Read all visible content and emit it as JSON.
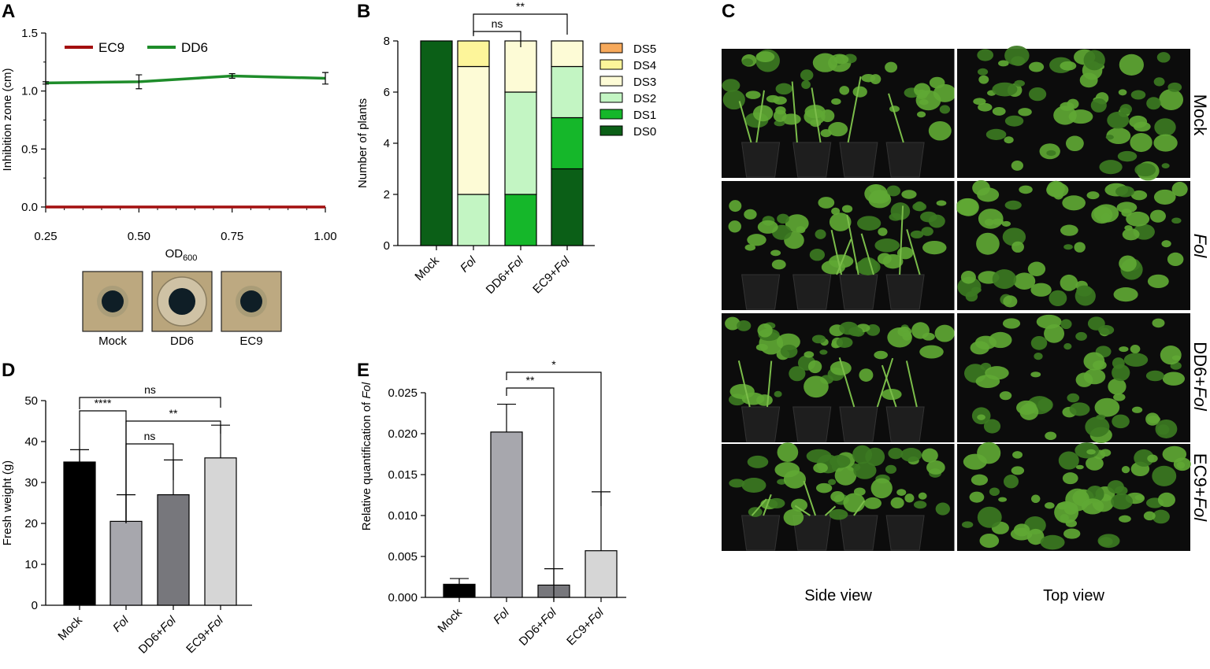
{
  "chart_data": [
    {
      "panel": "A",
      "type": "line",
      "xlabel": "OD",
      "xlabel_sub": "600",
      "ylabel": "Inhibition zone (cm)",
      "xlim": [
        0.25,
        1.0
      ],
      "ylim": [
        0.0,
        1.5
      ],
      "x_ticks": [
        "0.25",
        "0.50",
        "0.75",
        "1.00"
      ],
      "y_ticks": [
        "0.0",
        "0.5",
        "1.0",
        "1.5"
      ],
      "legend_position": "top-left",
      "series": [
        {
          "name": "EC9",
          "color": "#a30f0f",
          "x": [
            0.25,
            0.5,
            0.75,
            1.0
          ],
          "y": [
            0.0,
            0.0,
            0.0,
            0.0
          ],
          "err": [
            0,
            0,
            0,
            0
          ]
        },
        {
          "name": "DD6",
          "color": "#1e8c2a",
          "x": [
            0.25,
            0.5,
            0.75,
            1.0
          ],
          "y": [
            1.07,
            1.08,
            1.13,
            1.11
          ],
          "err": [
            0.01,
            0.06,
            0.02,
            0.05
          ]
        }
      ],
      "plate_labels": [
        "Mock",
        "DD6",
        "EC9"
      ]
    },
    {
      "panel": "B",
      "type": "bar",
      "stacked": true,
      "ylabel": "Number of plants",
      "ylim": [
        0,
        8
      ],
      "y_ticks": [
        "0",
        "2",
        "4",
        "6",
        "8"
      ],
      "categories": [
        "Mock",
        "Fol",
        "DD6+Fol",
        "EC9+Fol"
      ],
      "series": [
        {
          "name": "DS0",
          "color": "#0b5f17",
          "values": [
            8,
            0,
            0,
            3
          ]
        },
        {
          "name": "DS1",
          "color": "#15b72a",
          "values": [
            0,
            0,
            2,
            2
          ]
        },
        {
          "name": "DS2",
          "color": "#c3f5c3",
          "values": [
            0,
            2,
            4,
            2
          ]
        },
        {
          "name": "DS3",
          "color": "#fdfbd6",
          "values": [
            0,
            5,
            2,
            1
          ]
        },
        {
          "name": "DS4",
          "color": "#fdf59a",
          "values": [
            0,
            1,
            0,
            0
          ]
        },
        {
          "name": "DS5",
          "color": "#f7a95b",
          "values": [
            0,
            0,
            0,
            0
          ]
        }
      ],
      "significance": [
        {
          "from": 1,
          "to": 2,
          "label": "ns"
        },
        {
          "from": 1,
          "to": 3,
          "label": "**"
        }
      ]
    },
    {
      "panel": "D",
      "type": "bar",
      "ylabel": "Fresh weight (g)",
      "ylim": [
        0,
        50
      ],
      "y_ticks": [
        "0",
        "10",
        "20",
        "30",
        "40",
        "50"
      ],
      "categories": [
        "Mock",
        "Fol",
        "DD6+Fol",
        "EC9+Fol"
      ],
      "values": [
        35,
        20.5,
        27,
        36
      ],
      "errors": [
        3,
        6.5,
        8.5,
        8
      ],
      "colors": [
        "#000000",
        "#a7a7ad",
        "#77777c",
        "#d6d6d6"
      ],
      "significance": [
        {
          "from": 0,
          "to": 1,
          "label": "****"
        },
        {
          "from": 1,
          "to": 2,
          "label": "ns"
        },
        {
          "from": 1,
          "to": 3,
          "label": "**"
        },
        {
          "from": 0,
          "to": 3,
          "label": "ns"
        }
      ]
    },
    {
      "panel": "E",
      "type": "bar",
      "ylabel_prefix": "Relative quantification of ",
      "ylabel_italic": "Fol",
      "ylim": [
        0,
        0.025
      ],
      "y_ticks": [
        "0.000",
        "0.005",
        "0.010",
        "0.015",
        "0.020",
        "0.025"
      ],
      "categories": [
        "Mock",
        "Fol",
        "DD6+Fol",
        "EC9+Fol"
      ],
      "values": [
        0.0016,
        0.0202,
        0.0015,
        0.0057
      ],
      "errors": [
        0.0007,
        0.0034,
        0.002,
        0.0072
      ],
      "colors": [
        "#000000",
        "#a7a7ad",
        "#77777c",
        "#d6d6d6"
      ],
      "significance": [
        {
          "from": 1,
          "to": 2,
          "label": "**"
        },
        {
          "from": 1,
          "to": 3,
          "label": "*"
        }
      ]
    }
  ],
  "panels": {
    "a": "A",
    "b": "B",
    "c": "C",
    "d": "D",
    "e": "E"
  },
  "photos": {
    "col_labels": [
      "Side view",
      "Top view"
    ],
    "row_labels": [
      {
        "plain": "Mock",
        "italic": ""
      },
      {
        "plain": "",
        "italic": "Fol"
      },
      {
        "plain": "DD6+",
        "italic": "Fol"
      },
      {
        "plain": "EC9+",
        "italic": "Fol"
      }
    ],
    "colors": {
      "background": "#0c0c0c",
      "plant": "#5fa834",
      "plant_dark": "#3c7a22",
      "pot": "#1e1e1e"
    }
  }
}
